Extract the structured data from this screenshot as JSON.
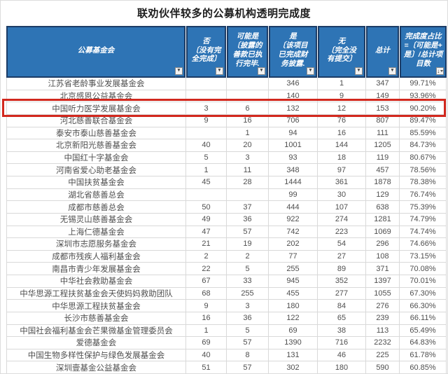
{
  "title": "联劝伙伴较多的公募机构透明完成度",
  "colors": {
    "header_bg": "#2e74b5",
    "header_border": "#1c3c66",
    "header_text": "#ffffff",
    "grid_line": "#d9d9d9",
    "body_text": "#4f4f4f",
    "highlight_red": "#d2281e"
  },
  "header": {
    "cells": [
      {
        "id": "foundation",
        "label": "公募基金会",
        "lines": "公募基金会",
        "icon": "filter-dropdown"
      },
      {
        "id": "no",
        "label": "否〔没有完全完成〕",
        "lines": "否\n〔没有完\n全完成〕",
        "icon": "filter-dropdown"
      },
      {
        "id": "maybe",
        "label": "可能是〔披露的善款已执行完毕.",
        "lines": "可能是\n〔披露的\n善款已执\n行完毕.",
        "icon": "filter-dropdown"
      },
      {
        "id": "yes",
        "label": "是〔该项目已完成财务披露.",
        "lines": "是\n〔该项目\n已完成财\n务披露.",
        "icon": "filter-dropdown"
      },
      {
        "id": "none",
        "label": "无〔完全没有提交〕",
        "lines": "无\n〔完全没\n有提交〕",
        "icon": "filter-dropdown"
      },
      {
        "id": "total",
        "label": "总计",
        "lines": "总计",
        "icon": "filter-dropdown"
      },
      {
        "id": "pct",
        "label": "完成度占比=〔可能是+是〕/总计项目数",
        "lines": "完成度占比\n=〔可能是+\n是〕/总计项\n目数",
        "icon": "sorted-desc-filter"
      }
    ]
  },
  "highlight": {
    "row_name": "中国听力医学发展基金会",
    "row_index": 2
  },
  "chart_data": {
    "type": "table",
    "title": "联劝伙伴较多的公募机构透明完成度",
    "columns": [
      "公募基金会",
      "否〔没有完全完成〕",
      "可能是〔披露的善款已执行完毕〕",
      "是〔该项目已完成财务披露〕",
      "无〔完全没有提交〕",
      "总计",
      "完成度占比=〔可能是+是〕/总计项目数"
    ],
    "rows": [
      [
        "江苏省老龄事业发展基金会",
        "",
        "",
        "346",
        "1",
        "347",
        "99.71%"
      ],
      [
        "北京感恩公益基金会",
        "",
        "",
        "140",
        "9",
        "149",
        "93.96%"
      ],
      [
        "中国听力医学发展基金会",
        "3",
        "6",
        "132",
        "12",
        "153",
        "90.20%"
      ],
      [
        "河北慈善联合基金会",
        "9",
        "16",
        "706",
        "76",
        "807",
        "89.47%"
      ],
      [
        "泰安市泰山慈善基金会",
        "",
        "1",
        "94",
        "16",
        "111",
        "85.59%"
      ],
      [
        "北京新阳光慈善基金会",
        "40",
        "20",
        "1001",
        "144",
        "1205",
        "84.73%"
      ],
      [
        "中国红十字基金会",
        "5",
        "3",
        "93",
        "18",
        "119",
        "80.67%"
      ],
      [
        "河南省爱心助老基金会",
        "1",
        "11",
        "348",
        "97",
        "457",
        "78.56%"
      ],
      [
        "中国扶贫基金会",
        "45",
        "28",
        "1444",
        "361",
        "1878",
        "78.38%"
      ],
      [
        "湖北省慈善总会",
        "",
        "",
        "99",
        "30",
        "129",
        "76.74%"
      ],
      [
        "成都市慈善总会",
        "50",
        "37",
        "444",
        "107",
        "638",
        "75.39%"
      ],
      [
        "无锡灵山慈善基金会",
        "49",
        "36",
        "922",
        "274",
        "1281",
        "74.79%"
      ],
      [
        "上海仁德基金会",
        "47",
        "57",
        "742",
        "223",
        "1069",
        "74.74%"
      ],
      [
        "深圳市志愿服务基金会",
        "21",
        "19",
        "202",
        "54",
        "296",
        "74.66%"
      ],
      [
        "成都市残疾人福利基金会",
        "2",
        "2",
        "77",
        "27",
        "108",
        "73.15%"
      ],
      [
        "南昌市青少年发展基金会",
        "22",
        "5",
        "255",
        "89",
        "371",
        "70.08%"
      ],
      [
        "中华社会救助基金会",
        "67",
        "33",
        "945",
        "352",
        "1397",
        "70.01%"
      ],
      [
        "中华思源工程扶贫基金会天使妈妈救助团队",
        "68",
        "255",
        "455",
        "277",
        "1055",
        "67.30%"
      ],
      [
        "中华思源工程扶贫基金会",
        "9",
        "3",
        "180",
        "84",
        "276",
        "66.30%"
      ],
      [
        "长沙市慈善基金会",
        "16",
        "36",
        "122",
        "65",
        "239",
        "66.11%"
      ],
      [
        "中国社会福利基金会芒果微基金管理委员会",
        "1",
        "5",
        "69",
        "38",
        "113",
        "65.49%"
      ],
      [
        "爱德基金会",
        "69",
        "57",
        "1390",
        "716",
        "2232",
        "64.83%"
      ],
      [
        "中国生物多样性保护与绿色发展基金会",
        "40",
        "8",
        "131",
        "46",
        "225",
        "61.78%"
      ],
      [
        "深圳壹基金公益基金会",
        "51",
        "57",
        "302",
        "180",
        "590",
        "60.85%"
      ]
    ]
  }
}
